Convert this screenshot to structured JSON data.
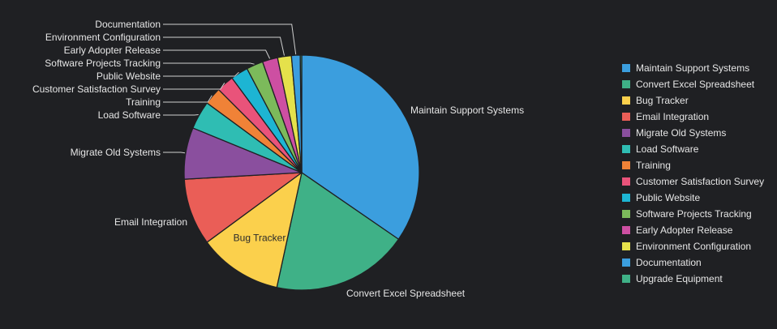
{
  "chart_data": {
    "type": "pie",
    "categories": [
      "Maintain Support Systems",
      "Convert Excel Spreadsheet",
      "Bug Tracker",
      "Email Integration",
      "Migrate Old Systems",
      "Load Software",
      "Training",
      "Customer Satisfaction Survey",
      "Public Website",
      "Software Projects Tracking",
      "Early Adopter Release",
      "Environment Configuration",
      "Documentation",
      "Upgrade Equipment"
    ],
    "values": [
      34.6,
      18.8,
      11.5,
      9.2,
      7.1,
      3.9,
      2.4,
      2.4,
      2.4,
      2.3,
      2.1,
      1.9,
      1.2,
      0.2
    ],
    "colors": [
      "#3b9ede",
      "#3fb187",
      "#fbd04c",
      "#ea5e57",
      "#8a4f9e",
      "#2fbdb3",
      "#f08237",
      "#e9537a",
      "#1db5d3",
      "#7cba5b",
      "#cd4fa2",
      "#e5e14b",
      "#3b9ede",
      "#3fb187"
    ],
    "legend_position": "right",
    "background_color": "#1f2023"
  }
}
